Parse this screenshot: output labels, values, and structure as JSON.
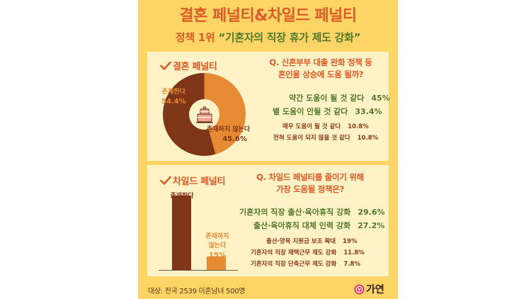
{
  "header": {
    "title": "결혼 페널티&차일드 페널티",
    "subtitle_rank": "정책 1위 ",
    "subtitle_policy": "“기혼자의 직장 휴가 제도 강화”"
  },
  "marriage_penalty": {
    "section_title": "결혼 페널티",
    "icon": "check-icon",
    "center_icon": "cake-icon",
    "exists_label": "존재한다",
    "exists_value": "54.4%",
    "not_exists_label": "존재하지 않는다",
    "not_exists_value": "45.6%",
    "question_line1": "Q. 신혼부부 대출 완화 정책 등",
    "question_line2": "혼인율 상승에 도움 될까?",
    "answers": [
      {
        "label": "약간 도움이 될 것 같다",
        "value": "45%"
      },
      {
        "label": "별 도움이 안될 것 같다",
        "value": "33.4%"
      },
      {
        "label": "매우 도움이 될 것 같다",
        "value": "10.8%"
      },
      {
        "label": "전혀 도움이 되지 않을 것 같다",
        "value": "10.8%"
      }
    ]
  },
  "child_penalty": {
    "section_title": "차일드 페널티",
    "icon": "check-icon",
    "exists_label": "존재한다",
    "exists_value": "85%",
    "not_exists_label_line1": "존재하지",
    "not_exists_label_line2": "않는다",
    "not_exists_value": "15%",
    "question_line1": "Q. 차일드 페널티를 줄이기 위해",
    "question_line2": "가장 도움될 정책은?",
    "answers": [
      {
        "label": "기혼자의 직장 출산·육아휴직 강화",
        "value": "29.6%"
      },
      {
        "label": "출산·육아휴직 대체 인력 강화",
        "value": "27.2%"
      },
      {
        "label": "출산·양육 지원금 보조 확대",
        "value": "19%"
      },
      {
        "label": "기혼자의 직장 재택근무 제도 강화",
        "value": "11.8%"
      },
      {
        "label": "기혼자의 직장 단축근무 제도 강화",
        "value": "7.8%"
      }
    ]
  },
  "footer": {
    "survey_target": "대상: 전국 2539 미혼남녀 500명",
    "brand": "가연",
    "brand_icon": "gayeon-logo-icon"
  },
  "colors": {
    "background": "#fdd466",
    "panel": "#fff2c7",
    "accent_orange": "#dd5b26",
    "green": "#52792b",
    "dark_brown": "#7f3517",
    "light_orange": "#e68a33",
    "logo_pink": "#e8365f"
  },
  "chart_data": [
    {
      "type": "pie",
      "title": "결혼 페널티",
      "categories": [
        "존재한다",
        "존재하지 않는다"
      ],
      "values": [
        54.4,
        45.6
      ],
      "colors": [
        "#7f3517",
        "#e68a33"
      ]
    },
    {
      "type": "bar",
      "title": "차일드 페널티",
      "categories": [
        "존재한다",
        "존재하지 않는다"
      ],
      "values": [
        85,
        15
      ],
      "colors": [
        "#7f3517",
        "#e68a33"
      ],
      "ylim": [
        0,
        100
      ]
    },
    {
      "type": "table",
      "title": "Q. 신혼부부 대출 완화 정책 등 혼인율 상승에 도움 될까?",
      "categories": [
        "약간 도움이 될 것 같다",
        "별 도움이 안될 것 같다",
        "매우 도움이 될 것 같다",
        "전혀 도움이 되지 않을 것 같다"
      ],
      "values": [
        45,
        33.4,
        10.8,
        10.8
      ]
    },
    {
      "type": "table",
      "title": "Q. 차일드 페널티를 줄이기 위해 가장 도움될 정책은?",
      "categories": [
        "기혼자의 직장 출산·육아휴직 강화",
        "출산·육아휴직 대체 인력 강화",
        "출산·양육 지원금 보조 확대",
        "기혼자의 직장 재택근무 제도 강화",
        "기혼자의 직장 단축근무 제도 강화"
      ],
      "values": [
        29.6,
        27.2,
        19,
        11.8,
        7.8
      ]
    }
  ]
}
